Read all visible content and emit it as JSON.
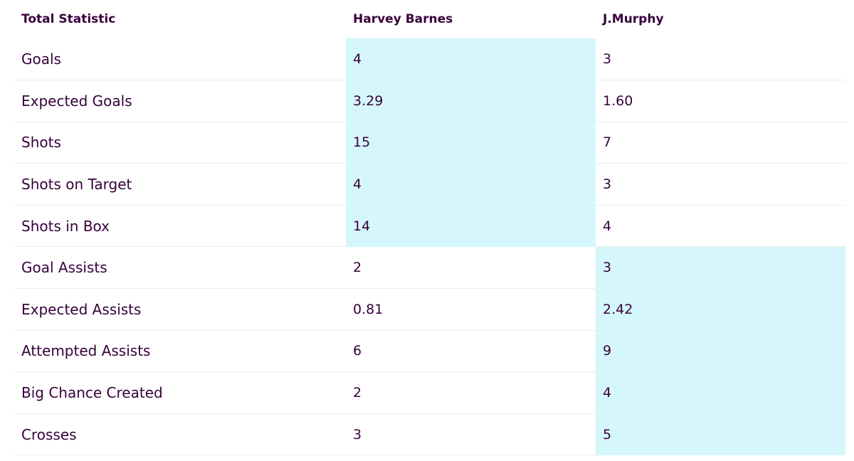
{
  "table": {
    "headers": [
      "Total Statistic",
      "Harvey Barnes",
      "J.Murphy"
    ],
    "rows": [
      {
        "stat": "Goals",
        "p1": "4",
        "p2": "3",
        "leader": "p1"
      },
      {
        "stat": "Expected Goals",
        "p1": "3.29",
        "p2": "1.60",
        "leader": "p1"
      },
      {
        "stat": "Shots",
        "p1": "15",
        "p2": "7",
        "leader": "p1"
      },
      {
        "stat": "Shots on Target",
        "p1": "4",
        "p2": "3",
        "leader": "p1"
      },
      {
        "stat": "Shots in Box",
        "p1": "14",
        "p2": "4",
        "leader": "p1"
      },
      {
        "stat": "Goal Assists",
        "p1": "2",
        "p2": "3",
        "leader": "p2"
      },
      {
        "stat": "Expected Assists",
        "p1": "0.81",
        "p2": "2.42",
        "leader": "p2"
      },
      {
        "stat": "Attempted Assists",
        "p1": "6",
        "p2": "9",
        "leader": "p2"
      },
      {
        "stat": "Big Chance Created",
        "p1": "2",
        "p2": "4",
        "leader": "p2"
      },
      {
        "stat": "Crosses",
        "p1": "3",
        "p2": "5",
        "leader": "p2"
      }
    ]
  },
  "colors": {
    "highlight": "#d5f7fb",
    "text": "#37003c",
    "divider": "#ebebeb"
  }
}
